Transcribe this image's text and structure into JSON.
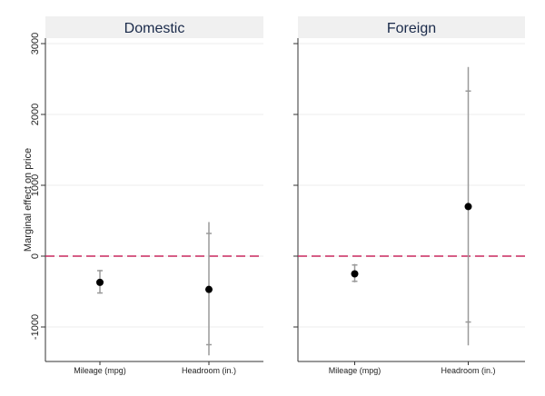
{
  "chart_data": {
    "type": "scatter",
    "ylabel": "Marginal effect on price",
    "ylim": [
      -1500,
      3000
    ],
    "yticks": [
      -1000,
      0,
      1000,
      2000,
      3000
    ],
    "categories": [
      "Mileage (mpg)",
      "Headroom (in.)"
    ],
    "reference_line": {
      "y": 0,
      "style": "dashed",
      "color": "#c8295f"
    },
    "grid": true,
    "colors": {
      "point": "#000000",
      "ci": "#9a9a9a",
      "panel_header_bg": "#f0f0f0"
    },
    "panels": [
      {
        "title": "Domestic",
        "points": [
          {
            "category": "Mileage (mpg)",
            "estimate": -370,
            "ci95": [
              -520,
              -205
            ],
            "ci99": [
              -530,
              -195
            ]
          },
          {
            "category": "Headroom (in.)",
            "estimate": -470,
            "ci95": [
              -1250,
              320
            ],
            "ci99": [
              -1400,
              480
            ]
          }
        ]
      },
      {
        "title": "Foreign",
        "points": [
          {
            "category": "Mileage (mpg)",
            "estimate": -250,
            "ci95": [
              -355,
              -125
            ],
            "ci99": [
              -370,
              -110
            ]
          },
          {
            "category": "Headroom (in.)",
            "estimate": 700,
            "ci95": [
              -930,
              2330
            ],
            "ci99": [
              -1260,
              2670
            ]
          }
        ]
      }
    ]
  }
}
